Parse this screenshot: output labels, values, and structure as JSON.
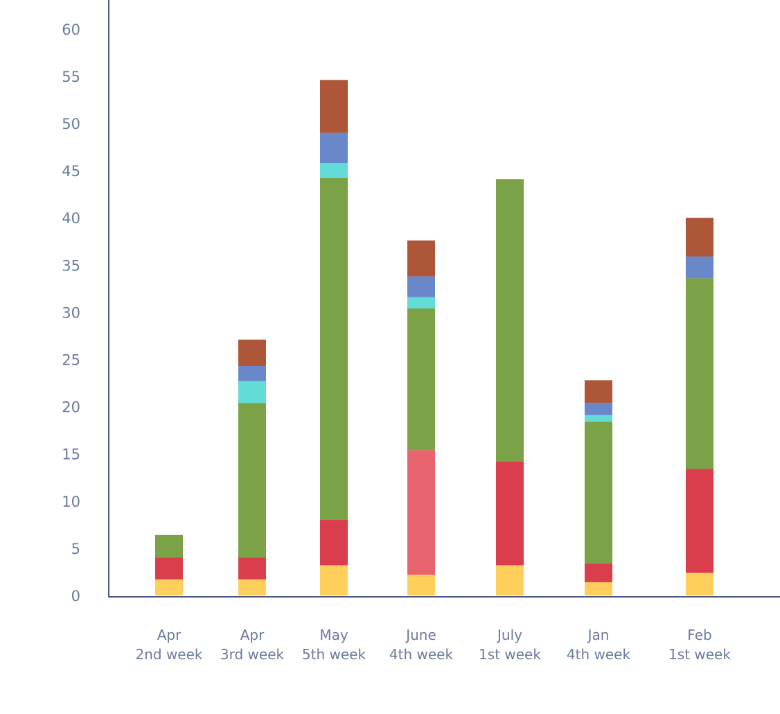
{
  "chart_data": {
    "type": "bar",
    "stacked": true,
    "categories": [
      [
        "Apr",
        "2nd week"
      ],
      [
        "Apr",
        "3rd week"
      ],
      [
        "May",
        "5th week"
      ],
      [
        "June",
        "4th week"
      ],
      [
        "July",
        "1st week"
      ],
      [
        "Jan",
        "4th week"
      ],
      [
        "Feb",
        "1st week"
      ]
    ],
    "ylim": [
      0,
      60
    ],
    "yticks": [
      0,
      5,
      10,
      15,
      20,
      25,
      30,
      35,
      40,
      45,
      50,
      55,
      60
    ],
    "grid": false,
    "series": [
      {
        "color": "#ffcf5c",
        "values": [
          1.7,
          1.7,
          3.2,
          2.2,
          3.2,
          1.4,
          2.4
        ]
      },
      {
        "color": "#da3e4c",
        "values": [
          2.3,
          2.3,
          4.8,
          0,
          11.0,
          2.0,
          11.0
        ]
      },
      {
        "color": "#e7646f",
        "values": [
          0,
          0,
          0,
          13.2,
          0,
          0,
          0
        ]
      },
      {
        "color": "#7ba246",
        "values": [
          2.4,
          16.4,
          36.2,
          15.0,
          29.9,
          15.0,
          20.2
        ]
      },
      {
        "color": "#63dbd6",
        "values": [
          0,
          2.3,
          1.6,
          1.2,
          0,
          0.7,
          0
        ]
      },
      {
        "color": "#6988c9",
        "values": [
          0,
          1.6,
          3.2,
          2.2,
          0,
          1.3,
          2.3
        ]
      },
      {
        "color": "#ad5638",
        "values": [
          0,
          2.8,
          5.6,
          3.8,
          0,
          2.4,
          4.1
        ]
      }
    ]
  }
}
